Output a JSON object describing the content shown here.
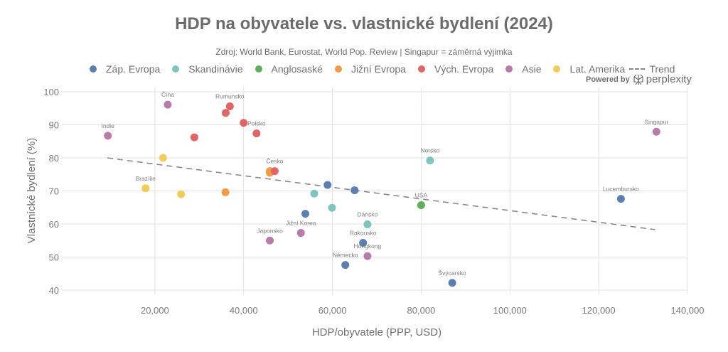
{
  "chart_data": {
    "type": "scatter",
    "title": "HDP na obyvatele vs. vlastnické bydlení (2024)",
    "subtitle": "Zdroj: World Bank, Eurostat, World Pop. Review | Singapur = záměrná výjimka",
    "xlabel": "HDP/obyvatele (PPP, USD)",
    "ylabel": "Vlastnické bydlení (%)",
    "xlim": [
      0,
      140000
    ],
    "ylim": [
      40,
      100
    ],
    "xticks": [
      20000,
      40000,
      60000,
      80000,
      100000,
      120000,
      140000
    ],
    "xtick_labels": [
      "20,000",
      "40,000",
      "60,000",
      "80,000",
      "100,000",
      "120,000",
      "140,000"
    ],
    "yticks": [
      40,
      50,
      60,
      70,
      80,
      90,
      100
    ],
    "ytick_labels": [
      "40",
      "50",
      "60",
      "70",
      "80",
      "90",
      "100"
    ],
    "grid": true,
    "legend_position": "top",
    "groups": [
      {
        "name": "Záp. Evropa",
        "color": "#5b7fb0"
      },
      {
        "name": "Skandinávie",
        "color": "#7fc4c0"
      },
      {
        "name": "Anglosaské",
        "color": "#5fae5b"
      },
      {
        "name": "Jižní Evropa",
        "color": "#f39a45"
      },
      {
        "name": "Vých. Evropa",
        "color": "#e26467"
      },
      {
        "name": "Asie",
        "color": "#b97ba9"
      },
      {
        "name": "Lat. Amerika",
        "color": "#f0cd5b"
      }
    ],
    "trend": {
      "name": "Trend",
      "color": "#888888",
      "x": [
        9300,
        132700
      ],
      "y": [
        80.0,
        58.3
      ]
    },
    "series": [
      {
        "group": "Záp. Evropa",
        "points": [
          {
            "x": 58900,
            "y": 71.8,
            "label": ""
          },
          {
            "x": 65000,
            "y": 70.2,
            "label": ""
          },
          {
            "x": 53900,
            "y": 63.1,
            "label": ""
          },
          {
            "x": 66900,
            "y": 54.3,
            "label": "Rakousko"
          },
          {
            "x": 62900,
            "y": 47.6,
            "label": "Německo"
          },
          {
            "x": 87000,
            "y": 42.2,
            "label": "Švýcarsko"
          },
          {
            "x": 125000,
            "y": 67.6,
            "label": "Lucembursko"
          }
        ]
      },
      {
        "group": "Skandinávie",
        "points": [
          {
            "x": 82000,
            "y": 79.2,
            "label": "Norsko"
          },
          {
            "x": 55900,
            "y": 69.2,
            "label": ""
          },
          {
            "x": 59900,
            "y": 64.9,
            "label": ""
          },
          {
            "x": 67900,
            "y": 59.9,
            "label": "Dánsko"
          }
        ]
      },
      {
        "group": "Anglosaské",
        "points": [
          {
            "x": 80000,
            "y": 65.7,
            "label": "USA"
          }
        ]
      },
      {
        "group": "Jižní Evropa",
        "points": [
          {
            "x": 35900,
            "y": 69.6,
            "label": ""
          },
          {
            "x": 45900,
            "y": 75.5,
            "label": ""
          },
          {
            "x": 45900,
            "y": 76.0,
            "label": ""
          }
        ]
      },
      {
        "group": "Vých. Evropa",
        "points": [
          {
            "x": 36900,
            "y": 95.6,
            "label": "Rumunsko"
          },
          {
            "x": 35950,
            "y": 93.6,
            "label": ""
          },
          {
            "x": 40000,
            "y": 90.6,
            "label": ""
          },
          {
            "x": 42900,
            "y": 87.4,
            "label": "Polsko"
          },
          {
            "x": 28900,
            "y": 86.2,
            "label": ""
          },
          {
            "x": 47000,
            "y": 76.0,
            "label": "Česko"
          }
        ]
      },
      {
        "group": "Asie",
        "points": [
          {
            "x": 9400,
            "y": 86.7,
            "label": "Indie"
          },
          {
            "x": 22900,
            "y": 96.1,
            "label": "Čína"
          },
          {
            "x": 45900,
            "y": 55.0,
            "label": "Japonsko"
          },
          {
            "x": 52900,
            "y": 57.3,
            "label": "Jižní Korea"
          },
          {
            "x": 67900,
            "y": 50.3,
            "label": "Hongkong"
          },
          {
            "x": 133000,
            "y": 87.9,
            "label": "Singapur"
          }
        ]
      },
      {
        "group": "Lat. Amerika",
        "points": [
          {
            "x": 21850,
            "y": 80.0,
            "label": ""
          },
          {
            "x": 17900,
            "y": 70.8,
            "label": "Brazílie"
          },
          {
            "x": 25900,
            "y": 69.0,
            "label": ""
          }
        ]
      }
    ]
  },
  "legend": {
    "items": [
      "Záp. Evropa",
      "Skandinávie",
      "Anglosaské",
      "Jižní Evropa",
      "Vých. Evropa",
      "Asie",
      "Lat. Amerika"
    ],
    "trend_label": "Trend"
  },
  "branding": {
    "powered_by": "Powered by",
    "brand": "perplexity"
  }
}
